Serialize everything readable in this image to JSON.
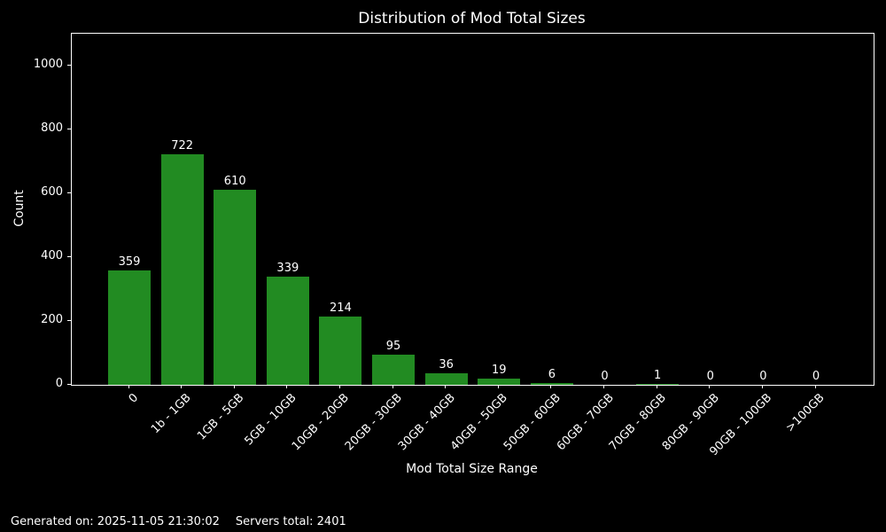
{
  "chart_data": {
    "type": "bar",
    "title": "Distribution of Mod Total Sizes",
    "xlabel": "Mod Total Size Range",
    "ylabel": "Count",
    "categories": [
      "0",
      "1b - 1GB",
      "1GB - 5GB",
      "5GB - 10GB",
      "10GB - 20GB",
      "20GB - 30GB",
      "30GB - 40GB",
      "40GB - 50GB",
      "50GB - 60GB",
      "60GB - 70GB",
      "70GB - 80GB",
      "80GB - 90GB",
      "90GB - 100GB",
      ">100GB"
    ],
    "values": [
      359,
      722,
      610,
      339,
      214,
      95,
      36,
      19,
      6,
      0,
      1,
      0,
      0,
      0
    ],
    "yticks": [
      0,
      200,
      400,
      600,
      800,
      1000
    ],
    "ylim": [
      0,
      1100
    ],
    "xtick_rotation_deg": 45,
    "grid": false,
    "legend": null,
    "bar_color": "#228B22",
    "background_color": "#000000",
    "text_color": "#ffffff"
  },
  "footer": {
    "generated_label": "Generated on: 2025-11-05 21:30:02",
    "servers_label": "Servers total: 2401"
  }
}
